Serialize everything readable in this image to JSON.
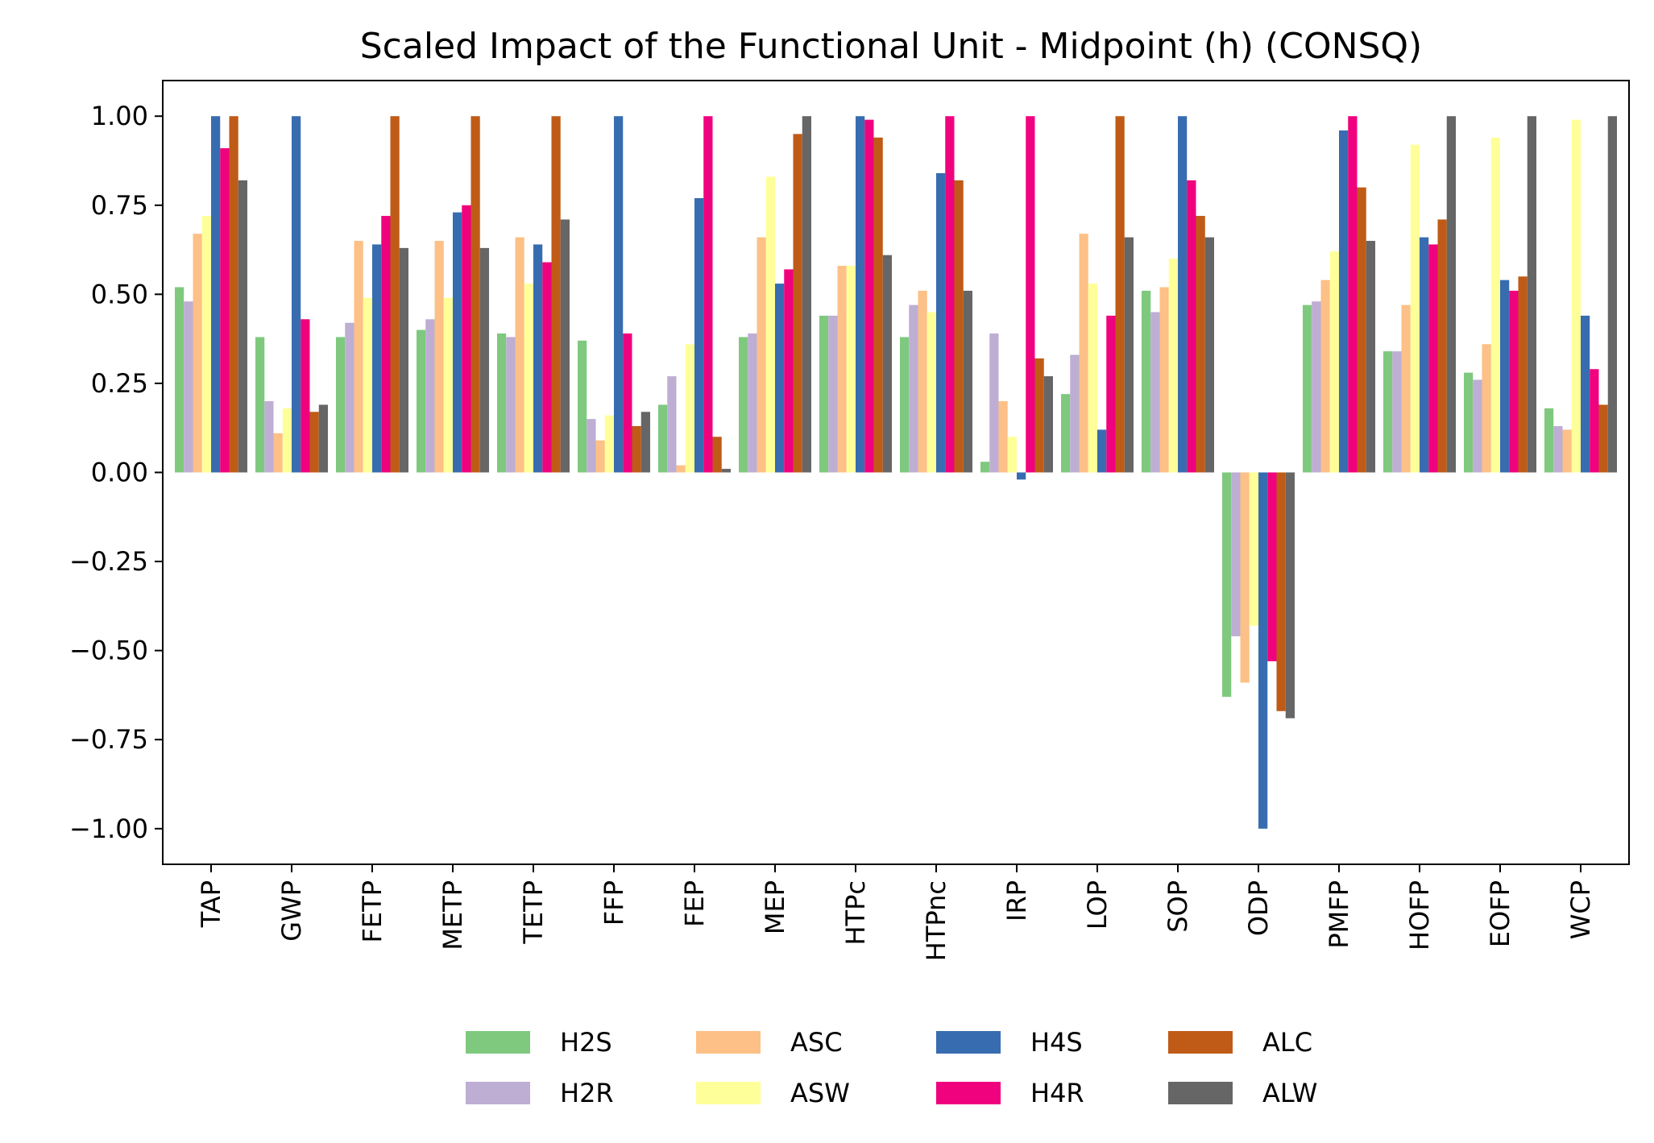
{
  "chart_data": {
    "type": "bar",
    "title": "Scaled Impact of the Functional Unit - Midpoint (h) (CONSQ)",
    "xlabel": "",
    "ylabel": "",
    "ylim": [
      -1.1,
      1.1
    ],
    "yticks": [
      1.0,
      0.75,
      0.5,
      0.25,
      0.0,
      -0.25,
      -0.5,
      -0.75,
      -1.0
    ],
    "ytick_labels": [
      "1.00",
      "0.75",
      "0.50",
      "0.25",
      "0.00",
      "−0.25",
      "−0.50",
      "−0.75",
      "−1.00"
    ],
    "grid": false,
    "legend_position": "bottom-center",
    "categories": [
      "TAP",
      "GWP",
      "FETP",
      "METP",
      "TETP",
      "FFP",
      "FEP",
      "MEP",
      "HTPc",
      "HTPnc",
      "IRP",
      "LOP",
      "SOP",
      "ODP",
      "PMFP",
      "HOFP",
      "EOFP",
      "WCP"
    ],
    "series": [
      {
        "name": "H2S",
        "color": "#7fc97f",
        "values": [
          0.52,
          0.38,
          0.38,
          0.4,
          0.39,
          0.37,
          0.19,
          0.38,
          0.44,
          0.38,
          0.03,
          0.22,
          0.51,
          -0.63,
          0.47,
          0.34,
          0.28,
          0.18
        ]
      },
      {
        "name": "H2R",
        "color": "#beaed4",
        "values": [
          0.48,
          0.2,
          0.42,
          0.43,
          0.38,
          0.15,
          0.27,
          0.39,
          0.44,
          0.47,
          0.39,
          0.33,
          0.45,
          -0.46,
          0.48,
          0.34,
          0.26,
          0.13
        ]
      },
      {
        "name": "ASC",
        "color": "#fdc086",
        "values": [
          0.67,
          0.11,
          0.65,
          0.65,
          0.66,
          0.09,
          0.02,
          0.66,
          0.58,
          0.51,
          0.2,
          0.67,
          0.52,
          -0.59,
          0.54,
          0.47,
          0.36,
          0.12
        ]
      },
      {
        "name": "ASW",
        "color": "#ffff99",
        "values": [
          0.72,
          0.18,
          0.49,
          0.49,
          0.53,
          0.16,
          0.36,
          0.83,
          0.58,
          0.45,
          0.1,
          0.53,
          0.6,
          -0.43,
          0.62,
          0.92,
          0.94,
          0.99
        ]
      },
      {
        "name": "H4S",
        "color": "#386cb0",
        "values": [
          1.0,
          1.0,
          0.64,
          0.73,
          0.64,
          1.0,
          0.77,
          0.53,
          1.0,
          0.84,
          -0.02,
          0.12,
          1.0,
          -1.0,
          0.96,
          0.66,
          0.54,
          0.44
        ]
      },
      {
        "name": "H4R",
        "color": "#f0027f",
        "values": [
          0.91,
          0.43,
          0.72,
          0.75,
          0.59,
          0.39,
          1.0,
          0.57,
          0.99,
          1.0,
          1.0,
          0.44,
          0.82,
          -0.53,
          1.0,
          0.64,
          0.51,
          0.29
        ]
      },
      {
        "name": "ALC",
        "color": "#bf5b17",
        "values": [
          1.0,
          0.17,
          1.0,
          1.0,
          1.0,
          0.13,
          0.1,
          0.95,
          0.94,
          0.82,
          0.32,
          1.0,
          0.72,
          -0.67,
          0.8,
          0.71,
          0.55,
          0.19
        ]
      },
      {
        "name": "ALW",
        "color": "#666666",
        "values": [
          0.82,
          0.19,
          0.63,
          0.63,
          0.71,
          0.17,
          0.01,
          1.0,
          0.61,
          0.51,
          0.27,
          0.66,
          0.66,
          -0.69,
          0.65,
          1.0,
          1.0,
          1.0
        ]
      }
    ]
  }
}
